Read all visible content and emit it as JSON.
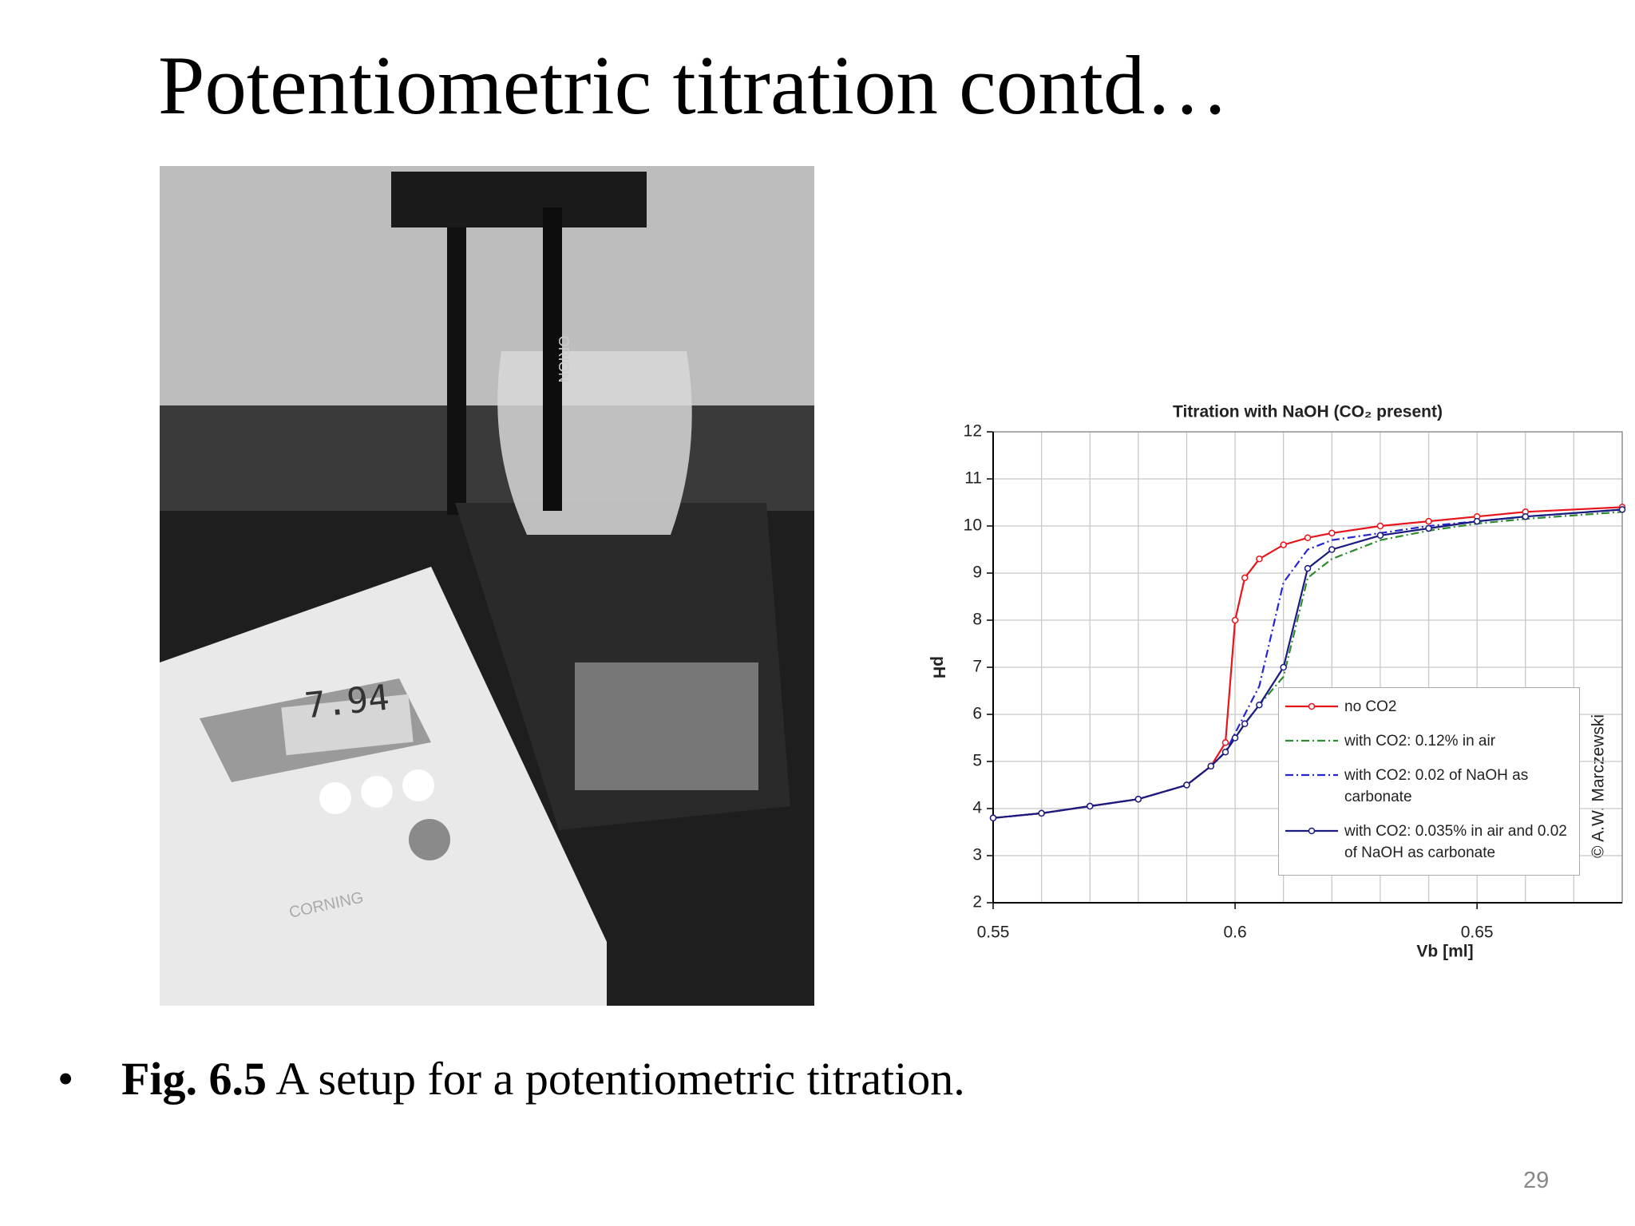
{
  "slide_title": "Potentiometric titration contd…",
  "photo": {
    "display": "7.94",
    "brand": "CORNING",
    "probe": "ORION"
  },
  "chart_data": {
    "type": "line",
    "title": "Titration with NaOH (CO₂ present)",
    "xlabel": "Vb [ml]",
    "ylabel": "pH",
    "watermark": "© A.W. Marczewski",
    "x": [
      0.55,
      0.56,
      0.57,
      0.58,
      0.59,
      0.595,
      0.598,
      0.6,
      0.602,
      0.605,
      0.61,
      0.615,
      0.62,
      0.63,
      0.64,
      0.65,
      0.66,
      0.68
    ],
    "series": [
      {
        "name": "no CO2",
        "color": "#e8141b",
        "style": "solid",
        "marker": true,
        "values": [
          3.8,
          3.9,
          4.05,
          4.2,
          4.5,
          4.9,
          5.4,
          8.0,
          8.9,
          9.3,
          9.6,
          9.75,
          9.85,
          10.0,
          10.1,
          10.2,
          10.3,
          10.4
        ]
      },
      {
        "name": "with CO2: 0.12% in air",
        "color": "#2e8b2e",
        "style": "dashdot",
        "marker": false,
        "values": [
          3.8,
          3.9,
          4.05,
          4.2,
          4.5,
          4.9,
          5.2,
          5.5,
          5.8,
          6.2,
          6.8,
          8.9,
          9.3,
          9.7,
          9.9,
          10.05,
          10.15,
          10.3
        ]
      },
      {
        "name": "with CO2: 0.02 of NaOH as carbonate",
        "color": "#2626d0",
        "style": "dashdot",
        "marker": false,
        "values": [
          3.8,
          3.9,
          4.05,
          4.2,
          4.5,
          4.9,
          5.2,
          5.6,
          6.0,
          6.6,
          8.8,
          9.5,
          9.7,
          9.85,
          10.0,
          10.1,
          10.2,
          10.35
        ]
      },
      {
        "name": "with CO2: 0.035% in air and 0.02 of NaOH as carbonate",
        "color": "#1a1a80",
        "style": "solid",
        "marker": true,
        "values": [
          3.8,
          3.9,
          4.05,
          4.2,
          4.5,
          4.9,
          5.2,
          5.5,
          5.8,
          6.2,
          7.0,
          9.1,
          9.5,
          9.8,
          9.95,
          10.1,
          10.2,
          10.35
        ]
      }
    ],
    "xlim": [
      0.55,
      0.68
    ],
    "ylim": [
      2,
      12
    ],
    "xticks": [
      0.55,
      0.6,
      0.65
    ],
    "xgrid": [
      0.56,
      0.57,
      0.58,
      0.59,
      0.6,
      0.61,
      0.62,
      0.63,
      0.64,
      0.65,
      0.66,
      0.67,
      0.68
    ],
    "yticks": [
      2,
      3,
      4,
      5,
      6,
      7,
      8,
      9,
      10,
      11,
      12
    ],
    "grid": true
  },
  "caption": {
    "label": "Fig. 6.5",
    "text": " A setup for a potentiometric titration."
  },
  "page_number": "29"
}
